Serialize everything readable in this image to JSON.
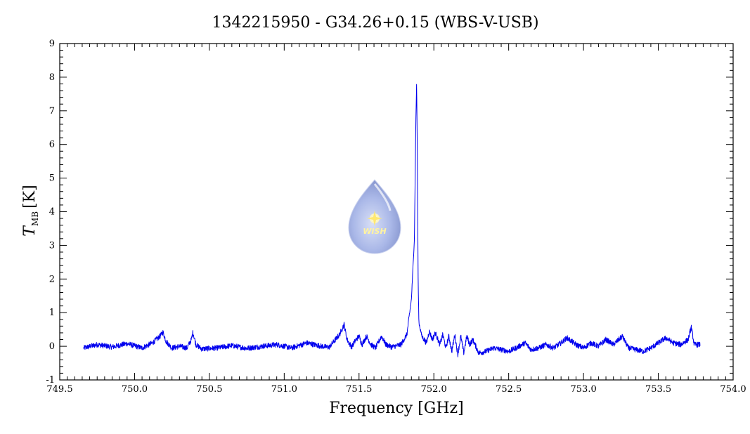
{
  "chart_data": {
    "type": "line",
    "title": "1342215950 - G34.26+0.15 (WBS-V-USB)",
    "xlabel": "Frequency [GHz]",
    "ylabel_main": "T",
    "ylabel_sub": "MB",
    "ylabel_unit": "[K]",
    "xlim": [
      749.5,
      754.0
    ],
    "ylim": [
      -1,
      9
    ],
    "x_ticks": [
      "749.5",
      "750.0",
      "750.5",
      "751.0",
      "751.5",
      "752.0",
      "752.5",
      "753.0",
      "753.5",
      "754.0"
    ],
    "y_ticks": [
      "-1",
      "0",
      "1",
      "2",
      "3",
      "4",
      "5",
      "6",
      "7",
      "8",
      "9"
    ],
    "grid": false,
    "line_color": "#0000ee",
    "series": [
      {
        "x": [
          749.66,
          749.75,
          749.85,
          749.95,
          750.05,
          750.12,
          750.17,
          750.19,
          750.21,
          750.25,
          750.3,
          750.35,
          750.38,
          750.39,
          750.41,
          750.45,
          750.55,
          750.65,
          750.75,
          750.85,
          750.95,
          751.05,
          751.15,
          751.25,
          751.3,
          751.37,
          751.4,
          751.42,
          751.45,
          751.48,
          751.5,
          751.52,
          751.55,
          751.58,
          751.61,
          751.65,
          751.68,
          751.72,
          751.78,
          751.82,
          751.85,
          751.87,
          751.88,
          751.885,
          751.89,
          751.895,
          751.9,
          751.92,
          751.95,
          751.97,
          751.99,
          752.01,
          752.04,
          752.06,
          752.08,
          752.1,
          752.12,
          752.14,
          752.16,
          752.18,
          752.2,
          752.22,
          752.24,
          752.26,
          752.3,
          752.35,
          752.4,
          752.45,
          752.5,
          752.55,
          752.61,
          752.65,
          752.7,
          752.75,
          752.8,
          752.85,
          752.89,
          752.95,
          753.0,
          753.05,
          753.1,
          753.15,
          753.2,
          753.26,
          753.3,
          753.35,
          753.4,
          753.45,
          753.5,
          753.55,
          753.6,
          753.65,
          753.7,
          753.72,
          753.74,
          753.78
        ],
        "y": [
          -0.05,
          0.05,
          -0.02,
          0.08,
          -0.05,
          0.1,
          0.3,
          0.42,
          0.15,
          -0.05,
          0.0,
          -0.05,
          0.2,
          0.42,
          0.05,
          -0.08,
          -0.05,
          0.02,
          -0.06,
          0.0,
          0.05,
          -0.05,
          0.1,
          0.0,
          -0.03,
          0.35,
          0.65,
          0.2,
          -0.02,
          0.2,
          0.3,
          0.05,
          0.3,
          0.05,
          -0.05,
          0.3,
          0.05,
          -0.02,
          0.05,
          0.35,
          1.4,
          3.2,
          6.8,
          7.85,
          5.5,
          2.0,
          0.7,
          0.3,
          0.1,
          0.45,
          0.2,
          0.4,
          0.05,
          0.35,
          -0.05,
          0.3,
          -0.15,
          0.35,
          -0.25,
          0.3,
          -0.2,
          0.3,
          0.05,
          0.2,
          -0.2,
          -0.15,
          -0.05,
          -0.1,
          -0.15,
          -0.05,
          0.1,
          -0.1,
          -0.05,
          0.05,
          -0.05,
          0.1,
          0.25,
          0.05,
          -0.05,
          0.1,
          0.0,
          0.2,
          0.05,
          0.3,
          -0.05,
          -0.1,
          -0.15,
          -0.05,
          0.1,
          0.25,
          0.1,
          0.05,
          0.2,
          0.58,
          0.05,
          0.05
        ]
      }
    ]
  },
  "logo": {
    "text": "WISH",
    "drop_color": "#aab8e8",
    "star_color": "#ffe870"
  }
}
